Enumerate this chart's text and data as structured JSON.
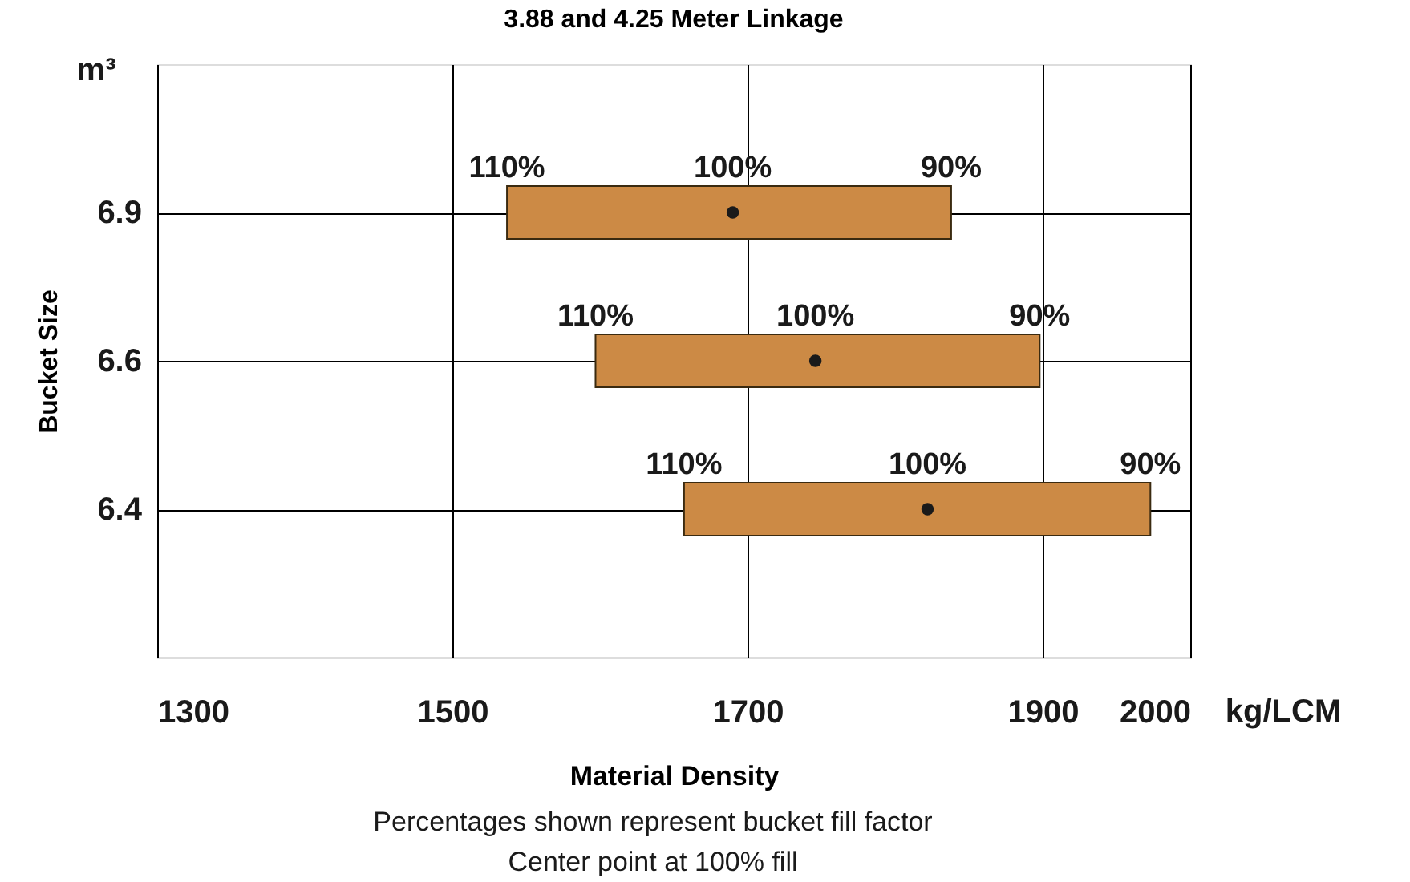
{
  "chart_data": {
    "type": "bar",
    "orientation": "horizontal",
    "title": "3.88 and 4.25 Meter Linkage",
    "xlabel": "Material Density",
    "ylabel": "Bucket Size",
    "categories": [
      "6.9",
      "6.6",
      "6.4"
    ],
    "series": [
      {
        "color": "#cc8a45",
        "base": [
          1537,
          1597,
          1657
        ],
        "values": [
          301,
          301,
          316
        ]
      },
      {
        "type": "scatter",
        "color": "#1a1a1a",
        "marker": "circle",
        "x": [
          "6.9",
          "6.6",
          "6.4"
        ],
        "values": [
          1690,
          1746,
          1822
        ]
      }
    ],
    "xlim": [
      1300,
      2000
    ],
    "xticks": [
      1300,
      1500,
      1700,
      1900,
      2000
    ],
    "grid": true,
    "annotations": [
      {
        "text": "110%",
        "x": 1537,
        "y": "6.9"
      },
      {
        "text": "100%",
        "x": 1690,
        "y": "6.9"
      },
      {
        "text": "90%",
        "x": 1838,
        "y": "6.9"
      },
      {
        "text": "110%",
        "x": 1597,
        "y": "6.6"
      },
      {
        "text": "100%",
        "x": 1746,
        "y": "6.6"
      },
      {
        "text": "90%",
        "x": 1898,
        "y": "6.6"
      },
      {
        "text": "110%",
        "x": 1657,
        "y": "6.4"
      },
      {
        "text": "100%",
        "x": 1822,
        "y": "6.4"
      },
      {
        "text": "90%",
        "x": 1973,
        "y": "6.4"
      },
      "m³",
      "kg/LCM",
      "Percentages shown represent bucket fill factor",
      "Center point at 100% fill"
    ]
  }
}
